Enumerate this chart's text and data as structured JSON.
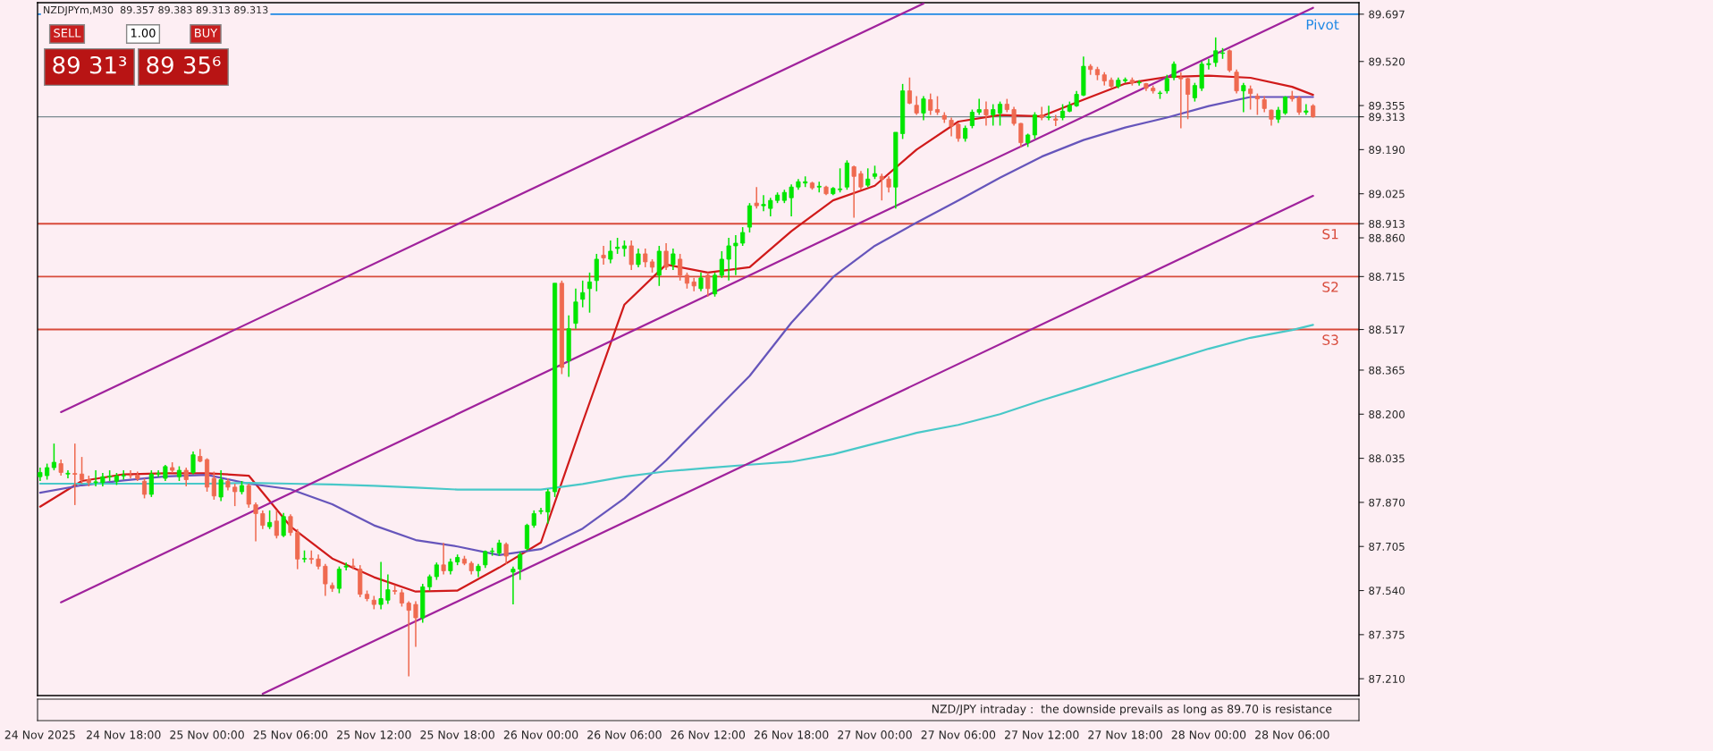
{
  "chart_data": {
    "type": "candlestick",
    "title": "NZDJPYm,M30  89.357 89.383 89.313 89.313",
    "x": [
      "2025-11-24T12:00",
      "2025-11-24T12:30",
      "2025-11-24T13:00",
      "2025-11-24T13:30",
      "2025-11-24T14:00",
      "2025-11-24T14:30",
      "2025-11-24T15:00",
      "2025-11-24T15:30",
      "2025-11-24T16:00",
      "2025-11-24T16:30",
      "2025-11-24T17:00",
      "2025-11-24T17:30",
      "2025-11-24T18:00",
      "2025-11-24T18:30",
      "2025-11-24T19:00",
      "2025-11-24T19:30",
      "2025-11-24T20:00",
      "2025-11-24T20:30",
      "2025-11-24T21:00",
      "2025-11-24T21:30",
      "2025-11-24T22:00",
      "2025-11-24T22:30",
      "2025-11-24T23:00",
      "2025-11-24T23:30",
      "2025-11-25T00:00",
      "2025-11-25T00:30",
      "2025-11-25T01:00",
      "2025-11-25T01:30",
      "2025-11-25T02:00",
      "2025-11-25T02:30",
      "2025-11-25T03:00",
      "2025-11-25T03:30",
      "2025-11-25T04:00",
      "2025-11-25T04:30",
      "2025-11-25T05:00",
      "2025-11-25T05:30",
      "2025-11-25T06:00",
      "2025-11-25T06:30",
      "2025-11-25T07:00",
      "2025-11-25T07:30",
      "2025-11-25T08:00",
      "2025-11-25T08:30",
      "2025-11-25T09:00",
      "2025-11-25T09:30",
      "2025-11-25T10:00",
      "2025-11-25T10:30",
      "2025-11-25T11:00",
      "2025-11-25T11:30",
      "2025-11-25T12:00",
      "2025-11-25T12:30",
      "2025-11-25T13:00",
      "2025-11-25T13:30",
      "2025-11-25T14:00",
      "2025-11-25T14:30",
      "2025-11-25T15:00",
      "2025-11-25T15:30",
      "2025-11-25T16:00",
      "2025-11-25T16:30",
      "2025-11-25T17:00",
      "2025-11-25T17:30",
      "2025-11-25T18:00",
      "2025-11-25T18:30",
      "2025-11-25T19:00",
      "2025-11-25T19:30",
      "2025-11-25T20:00",
      "2025-11-25T20:30",
      "2025-11-25T21:00",
      "2025-11-25T21:30",
      "2025-11-25T22:00",
      "2025-11-25T22:30",
      "2025-11-25T23:00",
      "2025-11-25T23:30",
      "2025-11-26T00:00",
      "2025-11-26T00:30",
      "2025-11-26T01:00",
      "2025-11-26T01:30",
      "2025-11-26T02:00",
      "2025-11-26T02:30",
      "2025-11-26T03:00",
      "2025-11-26T03:30",
      "2025-11-26T04:00",
      "2025-11-26T04:30",
      "2025-11-26T05:00",
      "2025-11-26T05:30",
      "2025-11-26T06:00",
      "2025-11-26T06:30",
      "2025-11-26T07:00",
      "2025-11-26T07:30",
      "2025-11-26T08:00",
      "2025-11-26T08:30",
      "2025-11-26T09:00",
      "2025-11-26T09:30",
      "2025-11-26T10:00",
      "2025-11-26T10:30",
      "2025-11-26T11:00",
      "2025-11-26T11:30",
      "2025-11-26T12:00",
      "2025-11-26T12:30",
      "2025-11-26T13:00",
      "2025-11-26T13:30",
      "2025-11-26T14:00",
      "2025-11-26T14:30",
      "2025-11-26T15:00",
      "2025-11-26T15:30",
      "2025-11-26T16:00",
      "2025-11-26T16:30",
      "2025-11-26T17:00",
      "2025-11-26T17:30",
      "2025-11-26T18:00",
      "2025-11-26T18:30",
      "2025-11-26T19:00",
      "2025-11-26T19:30",
      "2025-11-26T20:00",
      "2025-11-26T20:30",
      "2025-11-26T21:00",
      "2025-11-26T21:30",
      "2025-11-26T22:00",
      "2025-11-26T22:30",
      "2025-11-26T23:00",
      "2025-11-26T23:30",
      "2025-11-27T00:00",
      "2025-11-27T00:30",
      "2025-11-27T01:00",
      "2025-11-27T01:30",
      "2025-11-27T02:00",
      "2025-11-27T02:30",
      "2025-11-27T03:00",
      "2025-11-27T03:30",
      "2025-11-27T04:00",
      "2025-11-27T04:30",
      "2025-11-27T05:00",
      "2025-11-27T05:30",
      "2025-11-27T06:00",
      "2025-11-27T06:30",
      "2025-11-27T07:00",
      "2025-11-27T07:30",
      "2025-11-27T08:00",
      "2025-11-27T08:30",
      "2025-11-27T09:00",
      "2025-11-27T09:30",
      "2025-11-27T10:00",
      "2025-11-27T10:30",
      "2025-11-27T11:00",
      "2025-11-27T11:30",
      "2025-11-27T12:00",
      "2025-11-27T12:30",
      "2025-11-27T13:00",
      "2025-11-27T13:30",
      "2025-11-27T14:00",
      "2025-11-27T14:30",
      "2025-11-27T15:00",
      "2025-11-27T15:30",
      "2025-11-27T16:00",
      "2025-11-27T16:30",
      "2025-11-27T17:00",
      "2025-11-27T17:30",
      "2025-11-27T18:00",
      "2025-11-27T18:30",
      "2025-11-27T19:00",
      "2025-11-27T19:30",
      "2025-11-27T20:00",
      "2025-11-27T20:30",
      "2025-11-27T21:00",
      "2025-11-27T21:30",
      "2025-11-27T22:00",
      "2025-11-27T22:30",
      "2025-11-27T23:00",
      "2025-11-27T23:30",
      "2025-11-28T00:00",
      "2025-11-28T00:30",
      "2025-11-28T01:00",
      "2025-11-28T01:30",
      "2025-11-28T02:00",
      "2025-11-28T02:30",
      "2025-11-28T03:00",
      "2025-11-28T03:30",
      "2025-11-28T04:00",
      "2025-11-28T04:30",
      "2025-11-28T05:00",
      "2025-11-28T05:30",
      "2025-11-28T06:00",
      "2025-11-28T06:30",
      "2025-11-28T07:00",
      "2025-11-28T07:30"
    ],
    "ohlc": [
      [
        87.966,
        88.0,
        87.95,
        87.982
      ],
      [
        87.97,
        88.015,
        87.955,
        88.0
      ],
      [
        88.0,
        88.09,
        87.99,
        88.02
      ],
      [
        88.015,
        88.03,
        87.97,
        87.982
      ],
      [
        87.976,
        87.99,
        87.96,
        87.979
      ],
      [
        87.978,
        88.09,
        87.86,
        87.975
      ],
      [
        87.976,
        88.04,
        87.94,
        87.955
      ],
      [
        87.955,
        87.97,
        87.93,
        87.944
      ],
      [
        87.944,
        87.99,
        87.93,
        87.947
      ],
      [
        87.944,
        87.98,
        87.93,
        87.966
      ],
      [
        87.965,
        87.99,
        87.95,
        87.968
      ],
      [
        87.949,
        87.98,
        87.935,
        87.969
      ],
      [
        87.969,
        87.99,
        87.955,
        87.972
      ],
      [
        87.972,
        87.99,
        87.96,
        87.97
      ],
      [
        87.972,
        87.985,
        87.95,
        87.958
      ],
      [
        87.949,
        87.96,
        87.885,
        87.9
      ],
      [
        87.9,
        87.99,
        87.89,
        87.976
      ],
      [
        87.976,
        87.99,
        87.965,
        87.978
      ],
      [
        87.96,
        88.01,
        87.95,
        88.004
      ],
      [
        88.0,
        88.02,
        87.98,
        87.99
      ],
      [
        87.966,
        88.005,
        87.95,
        87.99
      ],
      [
        87.99,
        88.0,
        87.93,
        87.955
      ],
      [
        87.982,
        88.06,
        87.975,
        88.048
      ],
      [
        88.042,
        88.07,
        88.02,
        88.024
      ],
      [
        88.03,
        88.035,
        87.91,
        87.927
      ],
      [
        87.96,
        87.985,
        87.88,
        87.894
      ],
      [
        87.89,
        87.99,
        87.875,
        87.955
      ],
      [
        87.949,
        87.96,
        87.915,
        87.927
      ],
      [
        87.927,
        87.94,
        87.856,
        87.91
      ],
      [
        87.91,
        87.95,
        87.9,
        87.933
      ],
      [
        87.933,
        87.94,
        87.85,
        87.863
      ],
      [
        87.861,
        87.87,
        87.724,
        87.828
      ],
      [
        87.828,
        87.84,
        87.77,
        87.784
      ],
      [
        87.779,
        87.84,
        87.77,
        87.795
      ],
      [
        87.8,
        87.84,
        87.735,
        87.746
      ],
      [
        87.746,
        87.83,
        87.74,
        87.817
      ],
      [
        87.817,
        87.825,
        87.745,
        87.757
      ],
      [
        87.757,
        87.77,
        87.62,
        87.658
      ],
      [
        87.658,
        87.69,
        87.645,
        87.66
      ],
      [
        87.66,
        87.69,
        87.64,
        87.657
      ],
      [
        87.658,
        87.675,
        87.62,
        87.631
      ],
      [
        87.631,
        87.64,
        87.52,
        87.565
      ],
      [
        87.559,
        87.57,
        87.535,
        87.548
      ],
      [
        87.548,
        87.63,
        87.53,
        87.62
      ],
      [
        87.628,
        87.645,
        87.615,
        87.632
      ],
      [
        87.632,
        87.66,
        87.62,
        87.63
      ],
      [
        87.62,
        87.635,
        87.515,
        87.526
      ],
      [
        87.526,
        87.54,
        87.5,
        87.51
      ],
      [
        87.504,
        87.52,
        87.47,
        87.488
      ],
      [
        87.488,
        87.647,
        87.47,
        87.51
      ],
      [
        87.504,
        87.6,
        87.49,
        87.543
      ],
      [
        87.54,
        87.56,
        87.525,
        87.537
      ],
      [
        87.532,
        87.545,
        87.48,
        87.493
      ],
      [
        87.493,
        87.5,
        87.219,
        87.466
      ],
      [
        87.488,
        87.5,
        87.329,
        87.438
      ],
      [
        87.438,
        87.565,
        87.42,
        87.554
      ],
      [
        87.554,
        87.6,
        87.54,
        87.592
      ],
      [
        87.592,
        87.645,
        87.58,
        87.636
      ],
      [
        87.636,
        87.718,
        87.6,
        87.614
      ],
      [
        87.614,
        87.66,
        87.6,
        87.647
      ],
      [
        87.647,
        87.675,
        87.635,
        87.664
      ],
      [
        87.658,
        87.67,
        87.635,
        87.642
      ],
      [
        87.642,
        87.65,
        87.6,
        87.614
      ],
      [
        87.614,
        87.64,
        87.59,
        87.631
      ],
      [
        87.636,
        87.69,
        87.625,
        87.686
      ],
      [
        87.686,
        87.7,
        87.67,
        87.688
      ],
      [
        87.68,
        87.73,
        87.67,
        87.718
      ],
      [
        87.713,
        87.72,
        87.64,
        87.669
      ],
      [
        87.609,
        87.63,
        87.488,
        87.62
      ],
      [
        87.62,
        87.685,
        87.58,
        87.675
      ],
      [
        87.697,
        87.79,
        87.69,
        87.784
      ],
      [
        87.784,
        87.84,
        87.775,
        87.828
      ],
      [
        87.836,
        87.85,
        87.825,
        87.839
      ],
      [
        87.834,
        87.92,
        87.79,
        87.91
      ],
      [
        87.91,
        88.69,
        87.89,
        88.69
      ],
      [
        88.69,
        88.7,
        88.35,
        88.375
      ],
      [
        88.4,
        88.57,
        88.34,
        88.52
      ],
      [
        88.54,
        88.67,
        88.52,
        88.62
      ],
      [
        88.63,
        88.7,
        88.6,
        88.655
      ],
      [
        88.67,
        88.73,
        88.58,
        88.695
      ],
      [
        88.7,
        88.8,
        88.66,
        88.78
      ],
      [
        88.795,
        88.83,
        88.76,
        88.785
      ],
      [
        88.78,
        88.85,
        88.765,
        88.81
      ],
      [
        88.82,
        88.86,
        88.8,
        88.825
      ],
      [
        88.82,
        88.85,
        88.79,
        88.83
      ],
      [
        88.83,
        88.85,
        88.74,
        88.76
      ],
      [
        88.76,
        88.82,
        88.75,
        88.8
      ],
      [
        88.8,
        88.82,
        88.75,
        88.77
      ],
      [
        88.77,
        88.78,
        88.73,
        88.75
      ],
      [
        88.72,
        88.83,
        88.68,
        88.81
      ],
      [
        88.81,
        88.84,
        88.74,
        88.75
      ],
      [
        88.76,
        88.82,
        88.74,
        88.8
      ],
      [
        88.78,
        88.8,
        88.7,
        88.72
      ],
      [
        88.72,
        88.73,
        88.67,
        88.69
      ],
      [
        88.695,
        88.71,
        88.66,
        88.68
      ],
      [
        88.67,
        88.73,
        88.66,
        88.71
      ],
      [
        88.72,
        88.73,
        88.64,
        88.67
      ],
      [
        88.65,
        88.73,
        88.64,
        88.72
      ],
      [
        88.72,
        88.81,
        88.71,
        88.78
      ],
      [
        88.78,
        88.86,
        88.7,
        88.83
      ],
      [
        88.83,
        88.87,
        88.72,
        88.84
      ],
      [
        88.84,
        88.9,
        88.83,
        88.88
      ],
      [
        88.9,
        88.99,
        88.88,
        88.98
      ],
      [
        88.99,
        89.05,
        88.97,
        88.98
      ],
      [
        88.98,
        89.02,
        88.96,
        88.985
      ],
      [
        88.97,
        89.01,
        88.94,
        89.0
      ],
      [
        89.0,
        89.03,
        88.99,
        89.02
      ],
      [
        89.0,
        89.04,
        88.99,
        89.03
      ],
      [
        89.01,
        89.06,
        88.94,
        89.05
      ],
      [
        89.05,
        89.08,
        89.04,
        89.07
      ],
      [
        89.065,
        89.09,
        89.05,
        89.07
      ],
      [
        89.065,
        89.07,
        89.04,
        89.047
      ],
      [
        89.05,
        89.07,
        89.03,
        89.053
      ],
      [
        89.05,
        89.055,
        89.02,
        89.025
      ],
      [
        89.025,
        89.05,
        89.02,
        89.045
      ],
      [
        89.04,
        89.12,
        89.03,
        89.043
      ],
      [
        89.05,
        89.15,
        89.04,
        89.14
      ],
      [
        89.126,
        89.13,
        88.935,
        89.09
      ],
      [
        89.1,
        89.11,
        89.04,
        89.05
      ],
      [
        89.057,
        89.12,
        89.05,
        89.08
      ],
      [
        89.09,
        89.13,
        89.08,
        89.1
      ],
      [
        89.09,
        89.1,
        89.0,
        89.08
      ],
      [
        89.08,
        89.09,
        89.03,
        89.05
      ],
      [
        89.05,
        89.255,
        88.97,
        89.255
      ],
      [
        89.25,
        89.436,
        89.23,
        89.41
      ],
      [
        89.41,
        89.46,
        89.36,
        89.364
      ],
      [
        89.356,
        89.39,
        89.32,
        89.327
      ],
      [
        89.327,
        89.39,
        89.3,
        89.38
      ],
      [
        89.377,
        89.4,
        89.32,
        89.337
      ],
      [
        89.34,
        89.39,
        89.32,
        89.33
      ],
      [
        89.318,
        89.33,
        89.29,
        89.304
      ],
      [
        89.3,
        89.31,
        89.24,
        89.278
      ],
      [
        89.285,
        89.29,
        89.22,
        89.232
      ],
      [
        89.232,
        89.28,
        89.22,
        89.27
      ],
      [
        89.28,
        89.34,
        89.27,
        89.33
      ],
      [
        89.33,
        89.38,
        89.32,
        89.34
      ],
      [
        89.34,
        89.37,
        89.28,
        89.32
      ],
      [
        89.32,
        89.36,
        89.28,
        89.34
      ],
      [
        89.327,
        89.37,
        89.28,
        89.36
      ],
      [
        89.36,
        89.38,
        89.33,
        89.34
      ],
      [
        89.34,
        89.35,
        89.28,
        89.288
      ],
      [
        89.288,
        89.29,
        89.2,
        89.216
      ],
      [
        89.216,
        89.25,
        89.2,
        89.245
      ],
      [
        89.245,
        89.33,
        89.23,
        89.32
      ],
      [
        89.32,
        89.35,
        89.3,
        89.31
      ],
      [
        89.31,
        89.354,
        89.3,
        89.312
      ],
      [
        89.305,
        89.32,
        89.278,
        89.3
      ],
      [
        89.31,
        89.36,
        89.3,
        89.334
      ],
      [
        89.334,
        89.37,
        89.33,
        89.356
      ],
      [
        89.354,
        89.41,
        89.35,
        89.397
      ],
      [
        89.394,
        89.538,
        89.39,
        89.502
      ],
      [
        89.502,
        89.51,
        89.47,
        89.49
      ],
      [
        89.49,
        89.5,
        89.45,
        89.47
      ],
      [
        89.47,
        89.48,
        89.43,
        89.447
      ],
      [
        89.45,
        89.46,
        89.42,
        89.427
      ],
      [
        89.427,
        89.46,
        89.42,
        89.45
      ],
      [
        89.448,
        89.46,
        89.44,
        89.452
      ],
      [
        89.45,
        89.46,
        89.43,
        89.44
      ],
      [
        89.44,
        89.45,
        89.43,
        89.442
      ],
      [
        89.437,
        89.44,
        89.41,
        89.42
      ],
      [
        89.42,
        89.43,
        89.4,
        89.41
      ],
      [
        89.4,
        89.41,
        89.38,
        89.402
      ],
      [
        89.41,
        89.47,
        89.4,
        89.456
      ],
      [
        89.46,
        89.52,
        89.45,
        89.51
      ],
      [
        89.46,
        89.48,
        89.27,
        89.455
      ],
      [
        89.456,
        89.46,
        89.304,
        89.397
      ],
      [
        89.384,
        89.44,
        89.37,
        89.43
      ],
      [
        89.42,
        89.52,
        89.41,
        89.51
      ],
      [
        89.508,
        89.53,
        89.49,
        89.512
      ],
      [
        89.516,
        89.61,
        89.5,
        89.56
      ],
      [
        89.55,
        89.57,
        89.53,
        89.552
      ],
      [
        89.56,
        89.565,
        89.48,
        89.487
      ],
      [
        89.48,
        89.49,
        89.4,
        89.41
      ],
      [
        89.41,
        89.44,
        89.33,
        89.43
      ],
      [
        89.417,
        89.43,
        89.34,
        89.4
      ],
      [
        89.39,
        89.4,
        89.32,
        89.38
      ],
      [
        89.377,
        89.39,
        89.33,
        89.344
      ],
      [
        89.338,
        89.34,
        89.28,
        89.304
      ],
      [
        89.304,
        89.35,
        89.29,
        89.338
      ],
      [
        89.327,
        89.39,
        89.32,
        89.387
      ],
      [
        89.39,
        89.41,
        89.37,
        89.38
      ],
      [
        89.384,
        89.39,
        89.32,
        89.33
      ],
      [
        89.33,
        89.36,
        89.32,
        89.335
      ],
      [
        89.354,
        89.36,
        89.31,
        89.313
      ]
    ],
    "colors": [
      "#00e600",
      "#00e600",
      "#00e600",
      "#ef6a50",
      "#00e600",
      "#ef6a50",
      "#ef6a50",
      "#ef6a50",
      "#00e600",
      "#00e600",
      "#00e600",
      "#00e600",
      "#00e600",
      "#ef6a50",
      "#ef6a50",
      "#ef6a50",
      "#00e600",
      "#00e600",
      "#00e600",
      "#ef6a50",
      "#00e600",
      "#ef6a50",
      "#00e600",
      "#ef6a50",
      "#ef6a50",
      "#ef6a50",
      "#00e600",
      "#ef6a50",
      "#ef6a50",
      "#00e600",
      "#ef6a50",
      "#ef6a50",
      "#ef6a50",
      "#00e600",
      "#ef6a50",
      "#00e600",
      "#ef6a50",
      "#ef6a50",
      "#00e600",
      "#ef6a50",
      "#ef6a50",
      "#ef6a50",
      "#ef6a50",
      "#00e600",
      "#00e600",
      "#ef6a50",
      "#ef6a50",
      "#ef6a50",
      "#ef6a50",
      "#00e600",
      "#00e600",
      "#ef6a50",
      "#ef6a50",
      "#ef6a50",
      "#ef6a50",
      "#00e600",
      "#00e600",
      "#00e600",
      "#ef6a50",
      "#00e600",
      "#00e600",
      "#ef6a50",
      "#ef6a50",
      "#00e600",
      "#00e600",
      "#00e600",
      "#00e600",
      "#ef6a50",
      "#00e600",
      "#00e600",
      "#00e600",
      "#00e600",
      "#00e600",
      "#00e600",
      "#00e600",
      "#ef6a50",
      "#00e600",
      "#00e600",
      "#00e600",
      "#00e600",
      "#00e600",
      "#ef6a50",
      "#00e600",
      "#00e600",
      "#00e600",
      "#ef6a50",
      "#00e600",
      "#ef6a50",
      "#ef6a50",
      "#00e600",
      "#ef6a50",
      "#00e600",
      "#ef6a50",
      "#ef6a50",
      "#ef6a50",
      "#00e600",
      "#ef6a50",
      "#00e600",
      "#00e600",
      "#00e600",
      "#00e600",
      "#00e600",
      "#00e600",
      "#ef6a50",
      "#00e600",
      "#00e600",
      "#00e600",
      "#00e600",
      "#00e600",
      "#00e600",
      "#00e600",
      "#ef6a50",
      "#00e600",
      "#ef6a50",
      "#00e600",
      "#00e600",
      "#00e600",
      "#ef6a50",
      "#ef6a50",
      "#00e600",
      "#00e600",
      "#ef6a50",
      "#ef6a50",
      "#00e600",
      "#00e600",
      "#ef6a50",
      "#ef6a50",
      "#00e600",
      "#ef6a50",
      "#ef6a50",
      "#ef6a50",
      "#ef6a50",
      "#ef6a50",
      "#00e600",
      "#00e600",
      "#00e600",
      "#ef6a50",
      "#00e600",
      "#00e600",
      "#ef6a50",
      "#ef6a50",
      "#ef6a50",
      "#00e600",
      "#00e600",
      "#ef6a50",
      "#00e600",
      "#ef6a50",
      "#00e600",
      "#00e600",
      "#00e600",
      "#00e600",
      "#ef6a50",
      "#ef6a50",
      "#ef6a50",
      "#ef6a50",
      "#00e600",
      "#00e600",
      "#ef6a50",
      "#00e600",
      "#ef6a50",
      "#ef6a50",
      "#00e600",
      "#00e600",
      "#00e600",
      "#ef6a50",
      "#ef6a50",
      "#00e600",
      "#00e600",
      "#00e600",
      "#00e600",
      "#00e600",
      "#ef6a50",
      "#ef6a50",
      "#00e600",
      "#ef6a50",
      "#ef6a50",
      "#ef6a50",
      "#ef6a50",
      "#00e600",
      "#00e600",
      "#ef6a50",
      "#ef6a50",
      "#00e600",
      "#ef6a50"
    ],
    "series": [
      {
        "type": "line",
        "color": "#d01a1a",
        "x": [
          "2025-11-24T12:00",
          "2025-11-24T15:00",
          "2025-11-24T18:00",
          "2025-11-24T21:00",
          "2025-11-25T00:00",
          "2025-11-25T03:00",
          "2025-11-25T06:00",
          "2025-11-25T09:00",
          "2025-11-25T12:00",
          "2025-11-25T15:00",
          "2025-11-25T18:00",
          "2025-11-25T21:00",
          "2025-11-26T00:00",
          "2025-11-26T03:00",
          "2025-11-26T06:00",
          "2025-11-26T09:00",
          "2025-11-26T12:00",
          "2025-11-26T15:00",
          "2025-11-26T18:00",
          "2025-11-26T21:00",
          "2025-11-27T00:00",
          "2025-11-27T03:00",
          "2025-11-27T06:00",
          "2025-11-27T09:00",
          "2025-11-27T12:00",
          "2025-11-27T15:00",
          "2025-11-27T18:00",
          "2025-11-27T21:00",
          "2025-11-28T00:00",
          "2025-11-28T03:00",
          "2025-11-28T06:00",
          "2025-11-28T07:30"
        ],
        "values": [
          87.854,
          87.95,
          87.975,
          87.979,
          87.979,
          87.97,
          87.78,
          87.66,
          87.59,
          87.536,
          87.54,
          87.626,
          87.72,
          88.17,
          88.61,
          88.76,
          88.73,
          88.75,
          88.885,
          89.0,
          89.055,
          89.19,
          89.295,
          89.32,
          89.315,
          89.377,
          89.437,
          89.462,
          89.467,
          89.459,
          89.425,
          89.395
        ]
      },
      {
        "type": "line",
        "color": "#6655bb",
        "x": [
          "2025-11-24T12:00",
          "2025-11-24T15:00",
          "2025-11-24T18:00",
          "2025-11-24T21:00",
          "2025-11-25T00:00",
          "2025-11-25T03:00",
          "2025-11-25T06:00",
          "2025-11-25T09:00",
          "2025-11-25T12:00",
          "2025-11-25T15:00",
          "2025-11-25T18:00",
          "2025-11-25T21:00",
          "2025-11-26T00:00",
          "2025-11-26T03:00",
          "2025-11-26T06:00",
          "2025-11-26T09:00",
          "2025-11-26T12:00",
          "2025-11-26T15:00",
          "2025-11-26T18:00",
          "2025-11-26T21:00",
          "2025-11-27T00:00",
          "2025-11-27T03:00",
          "2025-11-27T06:00",
          "2025-11-27T09:00",
          "2025-11-27T12:00",
          "2025-11-27T15:00",
          "2025-11-27T18:00",
          "2025-11-27T21:00",
          "2025-11-28T00:00",
          "2025-11-28T03:00",
          "2025-11-28T06:00",
          "2025-11-28T07:30"
        ],
        "values": [
          87.906,
          87.934,
          87.952,
          87.967,
          87.973,
          87.94,
          87.919,
          87.863,
          87.784,
          87.729,
          87.705,
          87.673,
          87.695,
          87.772,
          87.885,
          88.027,
          88.185,
          88.343,
          88.542,
          88.713,
          88.83,
          88.917,
          89.0,
          89.085,
          89.164,
          89.226,
          89.273,
          89.31,
          89.353,
          89.387,
          89.387,
          89.387
        ]
      },
      {
        "type": "line",
        "color": "#48c8c8",
        "x": [
          "2025-11-24T12:00",
          "2025-11-24T15:00",
          "2025-11-24T18:00",
          "2025-11-24T21:00",
          "2025-11-25T00:00",
          "2025-11-25T03:00",
          "2025-11-25T06:00",
          "2025-11-25T09:00",
          "2025-11-25T12:00",
          "2025-11-25T15:00",
          "2025-11-25T18:00",
          "2025-11-25T21:00",
          "2025-11-26T00:00",
          "2025-11-26T03:00",
          "2025-11-26T06:00",
          "2025-11-26T09:00",
          "2025-11-26T12:00",
          "2025-11-26T15:00",
          "2025-11-26T18:00",
          "2025-11-26T21:00",
          "2025-11-27T00:00",
          "2025-11-27T03:00",
          "2025-11-27T06:00",
          "2025-11-27T09:00",
          "2025-11-27T12:00",
          "2025-11-27T15:00",
          "2025-11-27T18:00",
          "2025-11-27T21:00",
          "2025-11-28T00:00",
          "2025-11-28T03:00",
          "2025-11-28T06:00",
          "2025-11-28T07:30"
        ],
        "values": [
          87.94,
          87.94,
          87.94,
          87.94,
          87.94,
          87.943,
          87.94,
          87.937,
          87.932,
          87.925,
          87.918,
          87.918,
          87.918,
          87.939,
          87.966,
          87.986,
          87.999,
          88.011,
          88.022,
          88.05,
          88.09,
          88.13,
          88.16,
          88.2,
          88.252,
          88.3,
          88.35,
          88.397,
          88.445,
          88.486,
          88.515,
          88.534
        ]
      },
      {
        "type": "line",
        "color": "#a0229c",
        "x": [
          "2025-11-24T13:30",
          "2025-11-27T03:30"
        ],
        "values": [
          88.208,
          89.737
        ]
      },
      {
        "type": "line",
        "color": "#a0229c",
        "x": [
          "2025-11-24T13:30",
          "2025-11-28T07:30"
        ],
        "values": [
          87.496,
          89.721
        ]
      },
      {
        "type": "line",
        "color": "#a0229c",
        "x": [
          "2025-11-25T04:00",
          "2025-11-28T07:30"
        ],
        "values": [
          87.154,
          89.017
        ]
      }
    ],
    "ref_lines": [
      {
        "axis": "y",
        "value": 89.697,
        "label": "Pivot",
        "color": "#1e88e5"
      },
      {
        "axis": "y",
        "value": 88.913,
        "label": "S1",
        "color": "#d84a3a"
      },
      {
        "axis": "y",
        "value": 88.715,
        "label": "S2",
        "color": "#d84a3a"
      },
      {
        "axis": "y",
        "value": 88.517,
        "label": "S3",
        "color": "#d84a3a"
      },
      {
        "axis": "y",
        "value": 89.313,
        "label": null,
        "color": "#7a8a90"
      }
    ],
    "xlim": [
      "2025-11-24T11:49",
      "2025-11-28T10:48"
    ],
    "xticks": [
      {
        "value": "2025-11-24T12:00",
        "label": "24 Nov 2025"
      },
      {
        "value": "2025-11-24T18:00",
        "label": "24 Nov 18:00"
      },
      {
        "value": "2025-11-25T00:00",
        "label": "25 Nov 00:00"
      },
      {
        "value": "2025-11-25T06:00",
        "label": "25 Nov 06:00"
      },
      {
        "value": "2025-11-25T12:00",
        "label": "25 Nov 12:00"
      },
      {
        "value": "2025-11-25T18:00",
        "label": "25 Nov 18:00"
      },
      {
        "value": "2025-11-26T00:00",
        "label": "26 Nov 00:00"
      },
      {
        "value": "2025-11-26T06:00",
        "label": "26 Nov 06:00"
      },
      {
        "value": "2025-11-26T12:00",
        "label": "26 Nov 12:00"
      },
      {
        "value": "2025-11-26T18:00",
        "label": "26 Nov 18:00"
      },
      {
        "value": "2025-11-27T00:00",
        "label": "27 Nov 00:00"
      },
      {
        "value": "2025-11-27T06:00",
        "label": "27 Nov 06:00"
      },
      {
        "value": "2025-11-27T12:00",
        "label": "27 Nov 12:00"
      },
      {
        "value": "2025-11-27T18:00",
        "label": "27 Nov 18:00"
      },
      {
        "value": "2025-11-28T00:00",
        "label": "28 Nov 00:00"
      },
      {
        "value": "2025-11-28T06:00",
        "label": "28 Nov 06:00"
      }
    ],
    "ylim": [
      87.147,
      89.74
    ],
    "yticks": [
      {
        "value": 89.697,
        "label": "89.697"
      },
      {
        "value": 88.913,
        "label": "88.913"
      },
      {
        "value": 88.715,
        "label": "88.715"
      },
      {
        "value": 88.517,
        "label": "88.517"
      },
      {
        "value": 89.313,
        "label": "89.313"
      },
      {
        "value": 87.21,
        "label": "87.210"
      },
      87.375,
      {
        "value": 87.54,
        "label": "87.540"
      },
      87.705,
      {
        "value": 87.87,
        "label": "87.870"
      },
      88.035,
      {
        "value": 88.2,
        "label": "88.200"
      },
      88.365,
      {
        "value": 88.86,
        "label": "88.860"
      },
      89.025,
      {
        "value": 89.19,
        "label": "89.190"
      },
      89.355,
      {
        "value": 89.52,
        "label": "89.520"
      }
    ],
    "grid": false,
    "annotations": [
      "SELL",
      "1.00",
      "BUY",
      "89 31³",
      "89 35⁶",
      "NZD/JPY intraday :  the downside prevails as long as 89.70 is resistance"
    ]
  }
}
